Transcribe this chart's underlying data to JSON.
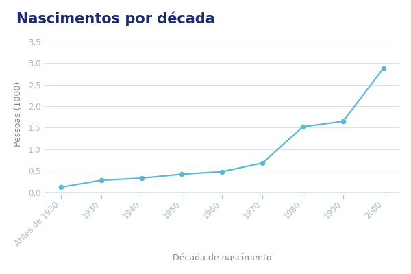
{
  "title": "Nascimentos por década",
  "xlabel": "Década de nascimento",
  "ylabel": "Pessoas (1000)",
  "x_labels": [
    "Antes de 1930",
    "1930",
    "1940",
    "1950",
    "1960",
    "1970",
    "1980",
    "1990",
    "2000"
  ],
  "y_values": [
    0.12,
    0.28,
    0.33,
    0.42,
    0.48,
    0.68,
    1.52,
    1.65,
    2.88
  ],
  "line_color": "#5bb8d4",
  "marker_color": "#5bb8d4",
  "background_color": "#ffffff",
  "grid_color": "#d8e4ea",
  "title_fontsize": 15,
  "label_fontsize": 9,
  "tick_fontsize": 8.5,
  "title_color": "#1a2a6c",
  "tick_label_color": "#aabbcc",
  "axis_label_color": "#888888",
  "ylim": [
    -0.05,
    3.7
  ],
  "yticks": [
    0.0,
    0.5,
    1.0,
    1.5,
    2.0,
    2.5,
    3.0,
    3.5
  ],
  "ytick_labels": [
    "0,0",
    "0,5",
    "1,0",
    "1,5",
    "2,0",
    "2,5",
    "3,0",
    "3,5"
  ]
}
